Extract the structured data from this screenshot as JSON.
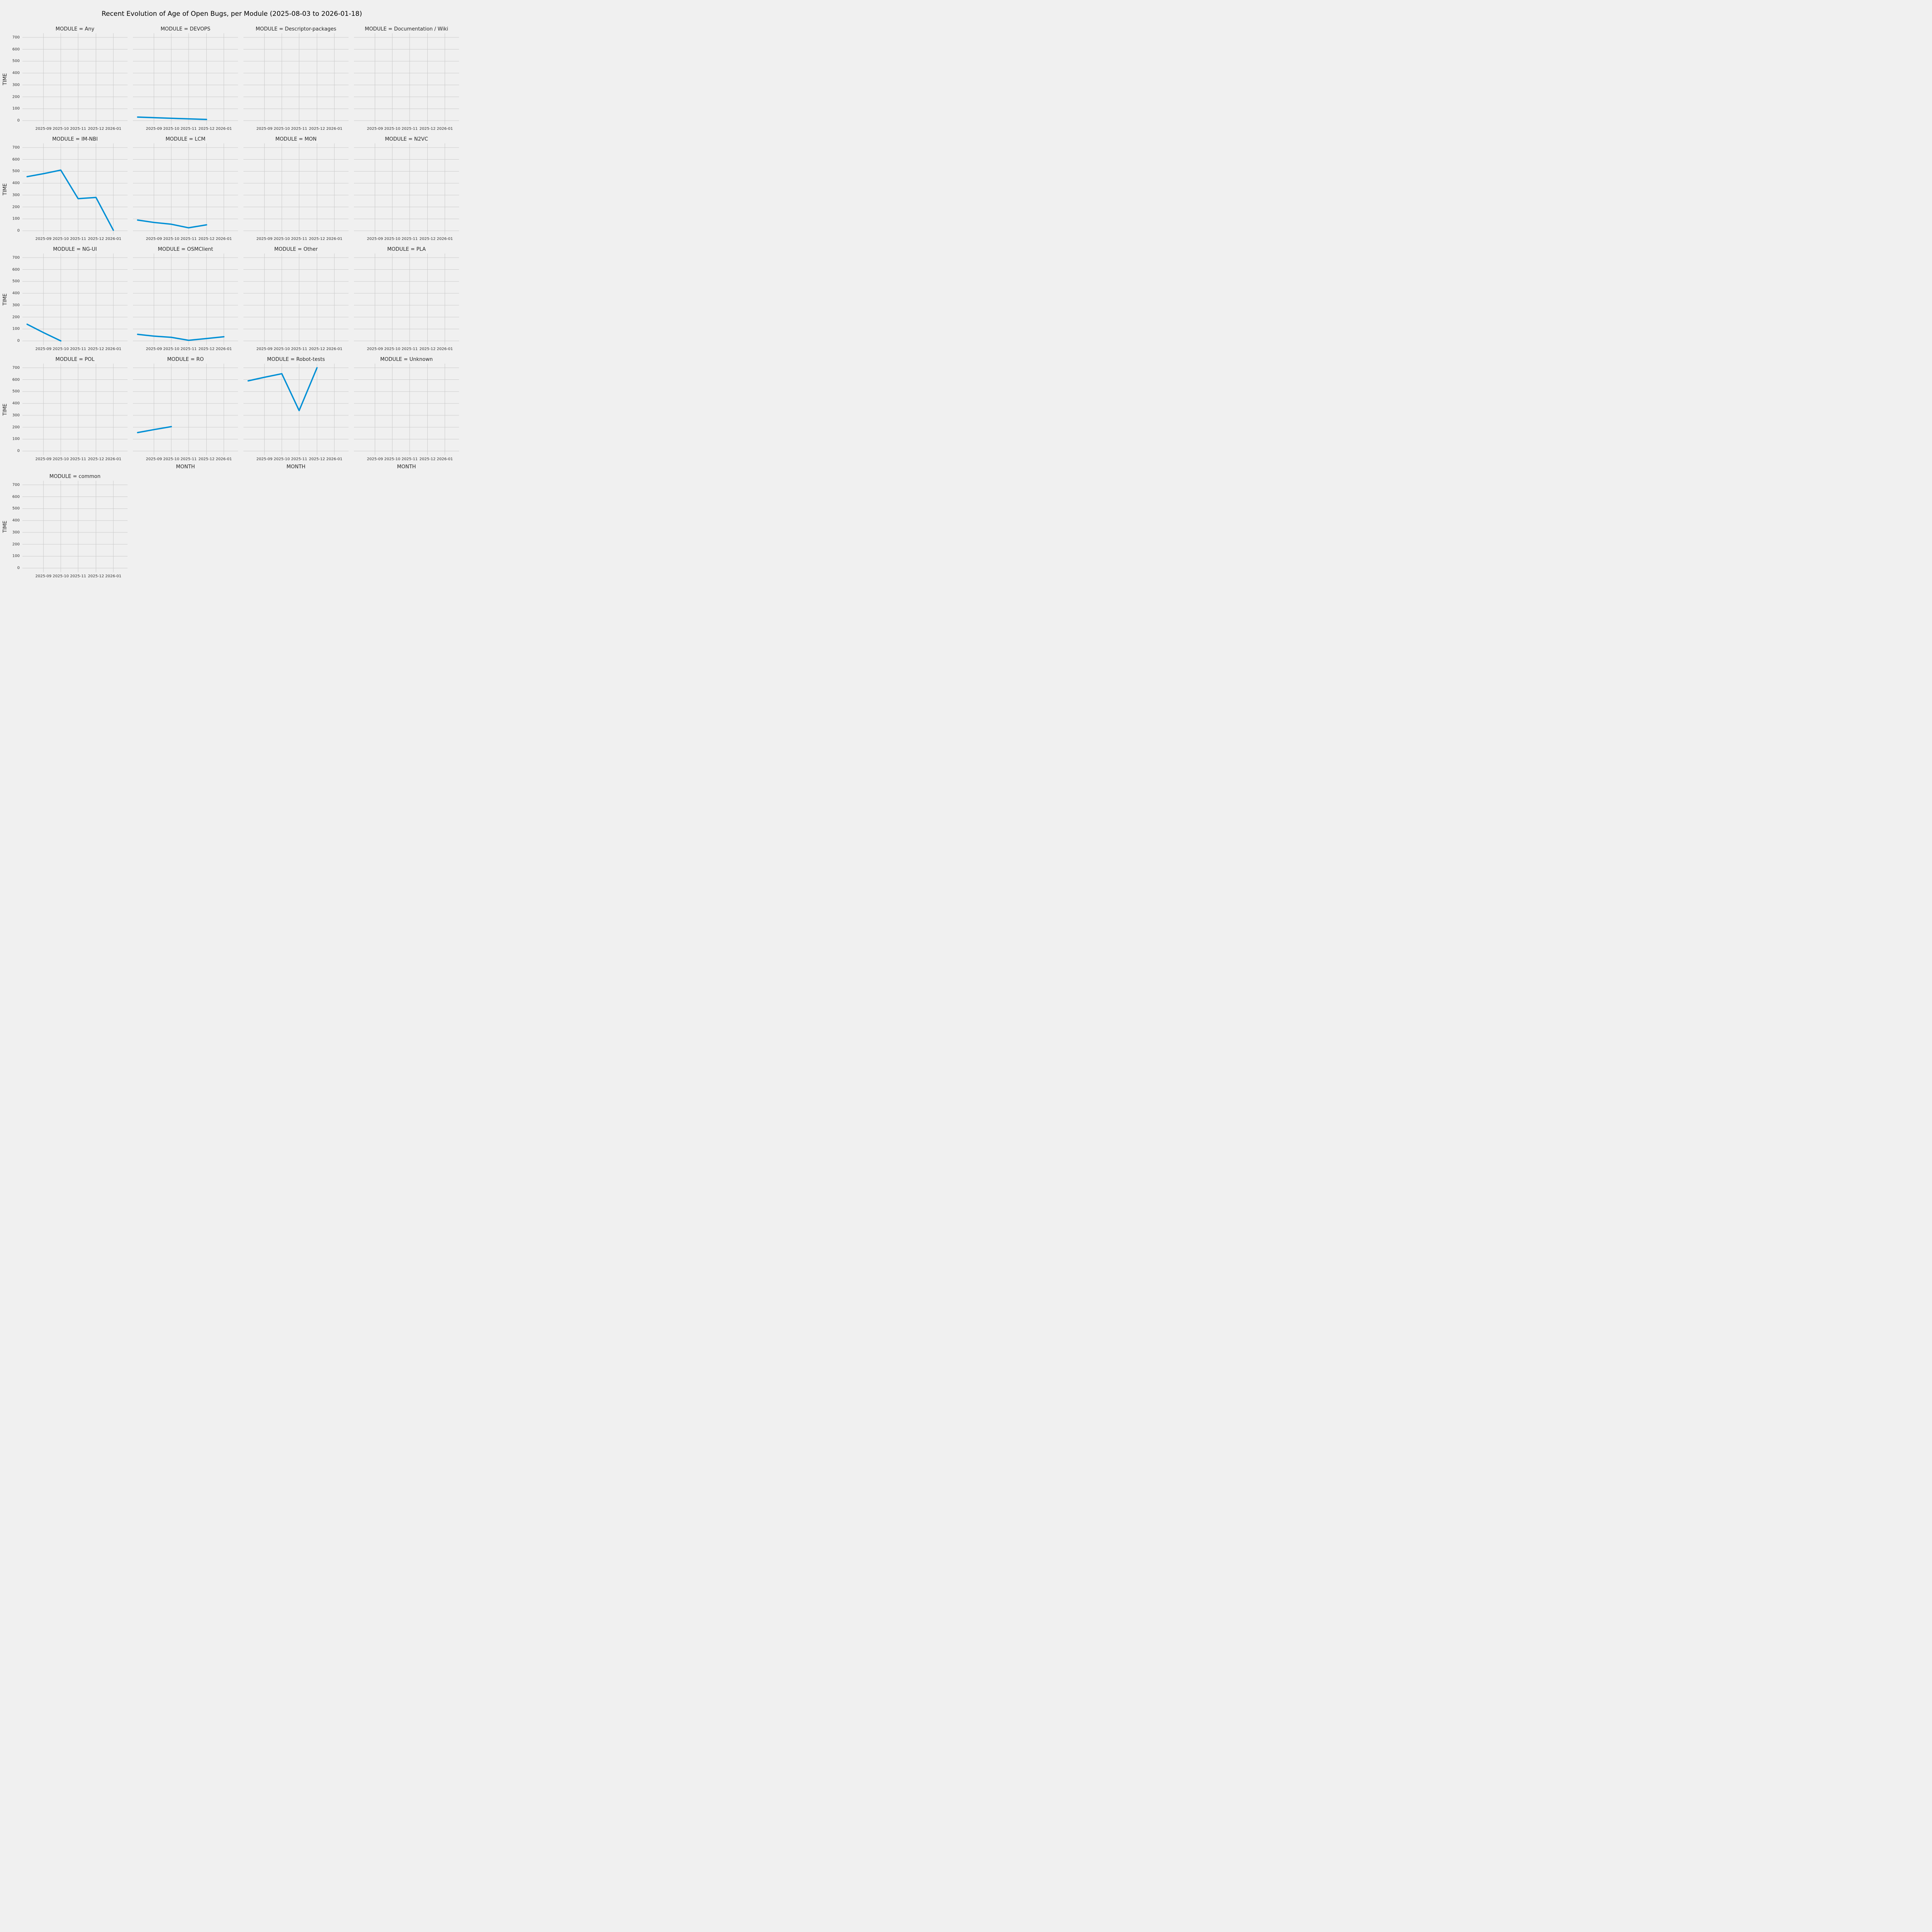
{
  "theme": {
    "background": "#f0f0f0",
    "grid_color": "#cbcbcb",
    "line_color": "#008fd5",
    "title_color": "#000000",
    "text_color": "#262626",
    "tick_color": "#333333"
  },
  "chart_data": {
    "type": "line",
    "title": "Recent Evolution of Age of Open Bugs, per Module (2025-08-03 to 2026-01-18)",
    "xlabel": "MONTH",
    "ylabel": "TIME",
    "ylim": [
      0,
      700
    ],
    "yticks": [
      0,
      100,
      200,
      300,
      400,
      500,
      600,
      700
    ],
    "xticks": [
      "2025-09",
      "2025-10",
      "2025-11",
      "2025-12",
      "2026-01"
    ],
    "x_positions": {
      "2025-08": 0.045,
      "2025-09": 0.2,
      "2025-10": 0.365,
      "2025-11": 0.53,
      "2025-12": 0.7,
      "2026-01": 0.865
    },
    "grid": true,
    "legend": false,
    "facet_by": "MODULE",
    "facet_columns": 4,
    "facets": [
      {
        "label": "MODULE = Any",
        "x": [],
        "y": []
      },
      {
        "label": "MODULE = DEVOPS",
        "x": [
          "2025-08",
          "2025-09",
          "2025-10",
          "2025-11",
          "2025-12"
        ],
        "y": [
          30,
          25,
          20,
          15,
          10
        ]
      },
      {
        "label": "MODULE = Descriptor-packages",
        "x": [],
        "y": []
      },
      {
        "label": "MODULE = Documentation / Wiki",
        "x": [],
        "y": []
      },
      {
        "label": "MODULE = IM-NBI",
        "x": [
          "2025-08",
          "2025-09",
          "2025-10",
          "2025-11",
          "2025-12",
          "2026-01"
        ],
        "y": [
          455,
          480,
          510,
          270,
          280,
          5
        ]
      },
      {
        "label": "MODULE = LCM",
        "x": [
          "2025-08",
          "2025-09",
          "2025-10",
          "2025-11",
          "2025-12"
        ],
        "y": [
          90,
          70,
          55,
          25,
          50
        ]
      },
      {
        "label": "MODULE = MON",
        "x": [],
        "y": []
      },
      {
        "label": "MODULE = N2VC",
        "x": [],
        "y": []
      },
      {
        "label": "MODULE = NG-UI",
        "x": [
          "2025-08",
          "2025-09",
          "2025-10"
        ],
        "y": [
          140,
          70,
          0
        ]
      },
      {
        "label": "MODULE = OSMClient",
        "x": [
          "2025-08",
          "2025-09",
          "2025-10",
          "2025-11",
          "2025-12",
          "2026-01"
        ],
        "y": [
          55,
          40,
          30,
          5,
          20,
          35
        ]
      },
      {
        "label": "MODULE = Other",
        "x": [],
        "y": []
      },
      {
        "label": "MODULE = PLA",
        "x": [],
        "y": []
      },
      {
        "label": "MODULE = POL",
        "x": [],
        "y": []
      },
      {
        "label": "MODULE = RO",
        "x": [
          "2025-08",
          "2025-09",
          "2025-10"
        ],
        "y": [
          155,
          180,
          205
        ]
      },
      {
        "label": "MODULE = Robot-tests",
        "x": [
          "2025-08",
          "2025-09",
          "2025-10",
          "2025-11",
          "2025-12"
        ],
        "y": [
          590,
          620,
          650,
          340,
          700
        ]
      },
      {
        "label": "MODULE = Unknown",
        "x": [],
        "y": []
      },
      {
        "label": "MODULE = common",
        "x": [],
        "y": []
      }
    ]
  }
}
